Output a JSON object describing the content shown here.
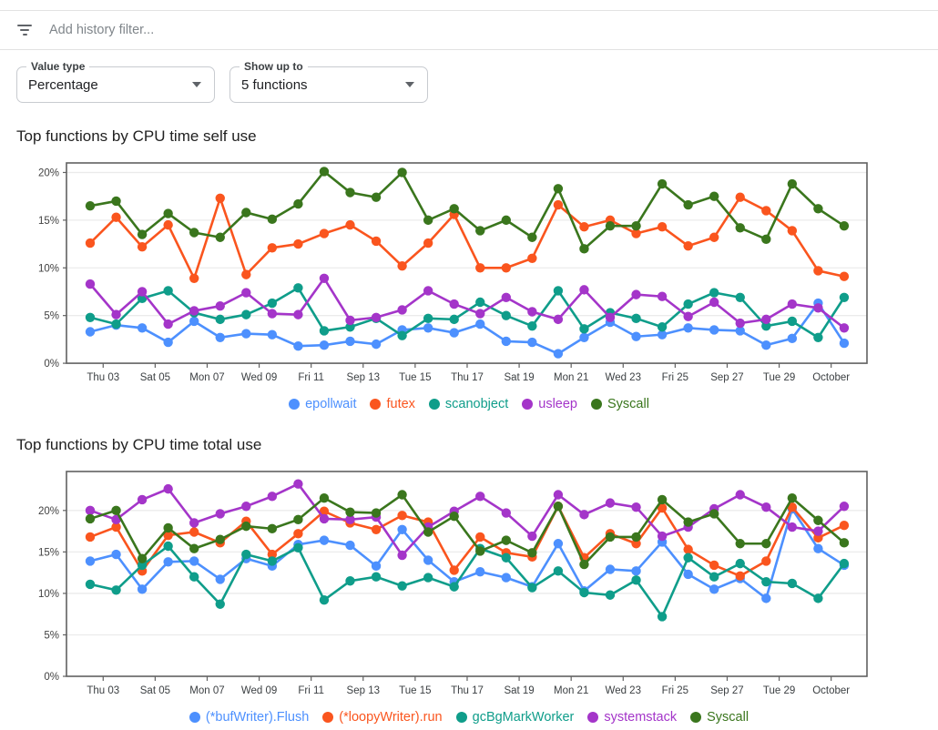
{
  "filter_bar": {
    "placeholder": "Add history filter..."
  },
  "controls": {
    "value_type": {
      "label": "Value type",
      "value": "Percentage"
    },
    "show_up_to": {
      "label": "Show up to",
      "value": "5 functions"
    }
  },
  "colors": {
    "blue": "#4d90fe",
    "orange": "#fa551e",
    "teal": "#0f9d8a",
    "purple": "#a435c9",
    "green": "#3a761d",
    "grid": "#ebebeb",
    "axis": "#616161",
    "tick_text": "#3c4043"
  },
  "chart_data": [
    {
      "type": "line",
      "title": "Top functions by CPU time self use",
      "x_tick_labels": [
        "Thu 03",
        "Sat 05",
        "Mon 07",
        "Wed 09",
        "Fri 11",
        "Sep 13",
        "Tue 15",
        "Thu 17",
        "Sat 19",
        "Mon 21",
        "Wed 23",
        "Fri 25",
        "Sep 27",
        "Tue 29",
        "October"
      ],
      "y_tick_labels": [
        "0%",
        "5%",
        "10%",
        "15%",
        "20%"
      ],
      "ylim": [
        0,
        21
      ],
      "grid": true,
      "legend_position": "bottom",
      "series": [
        {
          "name": "epollwait",
          "color": "#4d90fe",
          "values": [
            3.3,
            4.0,
            3.7,
            2.2,
            4.4,
            2.7,
            3.1,
            3.0,
            1.8,
            1.9,
            2.3,
            2.0,
            3.5,
            3.7,
            3.2,
            4.1,
            2.3,
            2.2,
            1.0,
            2.7,
            4.3,
            2.8,
            3.0,
            3.7,
            3.5,
            3.4,
            1.9,
            2.6,
            6.3,
            2.1
          ]
        },
        {
          "name": "futex",
          "color": "#fa551e",
          "values": [
            12.6,
            15.3,
            12.2,
            14.5,
            8.9,
            17.3,
            9.3,
            12.1,
            12.5,
            13.6,
            14.5,
            12.8,
            10.2,
            12.6,
            15.6,
            10.0,
            10.0,
            11.0,
            16.6,
            14.3,
            15.0,
            13.6,
            14.3,
            12.3,
            13.2,
            17.4,
            16.0,
            13.9,
            9.7,
            9.1
          ]
        },
        {
          "name": "scanobject",
          "color": "#0f9d8a",
          "values": [
            4.8,
            4.1,
            6.8,
            7.6,
            5.3,
            4.6,
            5.1,
            6.3,
            7.9,
            3.4,
            3.8,
            4.7,
            2.9,
            4.7,
            4.6,
            6.4,
            5.0,
            3.9,
            7.6,
            3.6,
            5.3,
            4.7,
            3.8,
            6.2,
            7.4,
            6.9,
            3.9,
            4.4,
            2.7,
            6.9
          ]
        },
        {
          "name": "usleep",
          "color": "#a435c9",
          "values": [
            8.3,
            5.1,
            7.5,
            4.1,
            5.5,
            6.0,
            7.4,
            5.2,
            5.1,
            8.9,
            4.5,
            4.8,
            5.6,
            7.6,
            6.2,
            5.2,
            6.9,
            5.4,
            4.6,
            7.7,
            4.8,
            7.2,
            7.0,
            4.9,
            6.4,
            4.2,
            4.6,
            6.2,
            5.8,
            3.7
          ]
        },
        {
          "name": "Syscall",
          "color": "#3a761d",
          "values": [
            16.5,
            17.0,
            13.5,
            15.7,
            13.7,
            13.2,
            15.8,
            15.1,
            16.7,
            20.1,
            17.9,
            17.4,
            20.0,
            15.0,
            16.2,
            13.9,
            15.0,
            13.2,
            18.3,
            12.0,
            14.4,
            14.4,
            18.8,
            16.6,
            17.5,
            14.2,
            13.0,
            18.8,
            16.2,
            14.4
          ]
        }
      ]
    },
    {
      "type": "line",
      "title": "Top functions by CPU time total use",
      "x_tick_labels": [
        "Thu 03",
        "Sat 05",
        "Mon 07",
        "Wed 09",
        "Fri 11",
        "Sep 13",
        "Tue 15",
        "Thu 17",
        "Sat 19",
        "Mon 21",
        "Wed 23",
        "Fri 25",
        "Sep 27",
        "Tue 29",
        "October"
      ],
      "y_tick_labels": [
        "0%",
        "5%",
        "10%",
        "15%",
        "20%"
      ],
      "ylim": [
        0,
        24.7
      ],
      "grid": true,
      "legend_position": "bottom",
      "series": [
        {
          "name": "(*bufWriter).Flush",
          "color": "#4d90fe",
          "values": [
            13.9,
            14.7,
            10.5,
            13.8,
            13.9,
            11.7,
            14.2,
            13.3,
            15.9,
            16.4,
            15.8,
            13.3,
            17.7,
            14.0,
            11.4,
            12.6,
            11.9,
            10.8,
            16.0,
            10.3,
            12.9,
            12.7,
            16.2,
            12.3,
            10.5,
            11.8,
            9.4,
            20.2,
            15.4,
            13.4
          ]
        },
        {
          "name": "(*loopyWriter).run",
          "color": "#fa551e",
          "values": [
            16.8,
            18.0,
            12.7,
            17.0,
            17.4,
            16.1,
            18.7,
            14.7,
            17.2,
            19.9,
            18.5,
            17.7,
            19.4,
            18.6,
            12.8,
            16.8,
            14.9,
            14.4,
            20.5,
            14.3,
            17.2,
            16.0,
            20.3,
            15.3,
            13.4,
            12.1,
            13.9,
            20.4,
            16.7,
            18.2
          ]
        },
        {
          "name": "gcBgMarkWorker",
          "color": "#0f9d8a",
          "values": [
            11.1,
            10.4,
            13.4,
            15.7,
            12.0,
            8.7,
            14.7,
            13.9,
            15.5,
            9.2,
            11.5,
            12.0,
            10.9,
            11.9,
            10.8,
            15.4,
            14.3,
            10.7,
            12.7,
            10.1,
            9.8,
            11.6,
            7.2,
            14.3,
            12.0,
            13.6,
            11.4,
            11.2,
            9.4,
            13.6
          ]
        },
        {
          "name": "systemstack",
          "color": "#a435c9",
          "values": [
            20.0,
            18.9,
            21.3,
            22.6,
            18.5,
            19.6,
            20.5,
            21.7,
            23.2,
            19.0,
            18.9,
            19.2,
            14.6,
            18.0,
            19.9,
            21.7,
            19.7,
            16.9,
            21.9,
            19.5,
            20.9,
            20.4,
            16.9,
            18.0,
            20.2,
            21.9,
            20.4,
            18.0,
            17.5,
            20.5
          ]
        },
        {
          "name": "Syscall",
          "color": "#3a761d",
          "values": [
            19.0,
            20.0,
            14.2,
            17.9,
            15.4,
            16.5,
            18.1,
            17.8,
            18.9,
            21.5,
            19.8,
            19.7,
            21.9,
            17.4,
            19.3,
            15.1,
            16.4,
            14.9,
            20.5,
            13.5,
            16.8,
            16.8,
            21.3,
            18.6,
            19.6,
            16.0,
            16.0,
            21.5,
            18.8,
            16.1
          ]
        }
      ]
    }
  ]
}
